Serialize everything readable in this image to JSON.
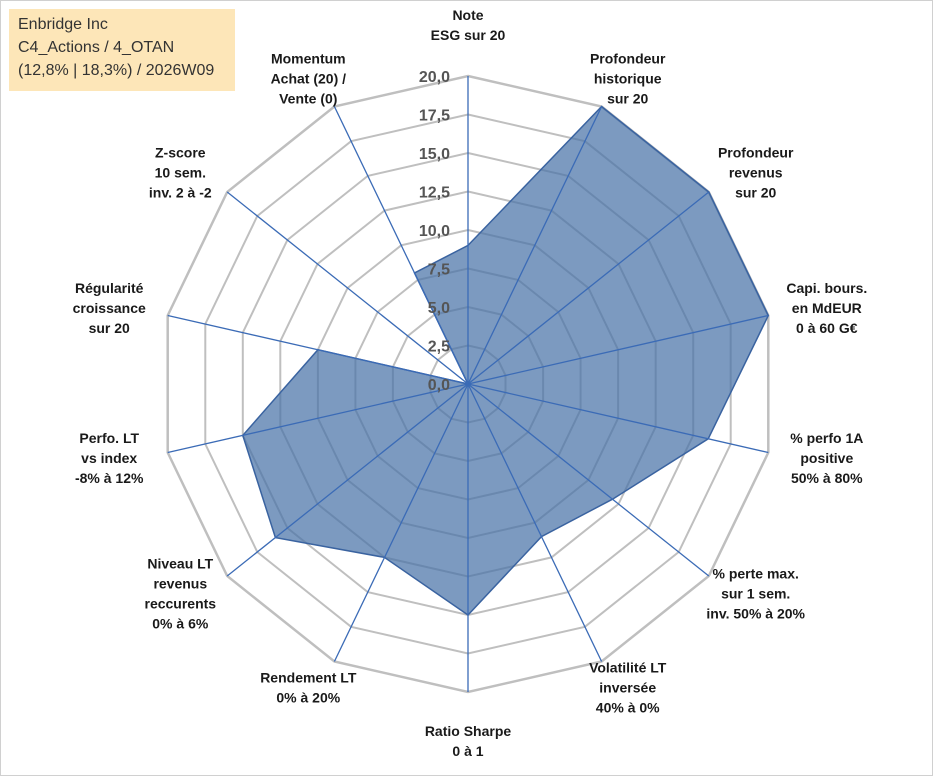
{
  "info": {
    "line1": "Enbridge Inc",
    "line2": "C4_Actions / 4_OTAN",
    "line3": "(12,8% | 18,3%) / 2026W09"
  },
  "chart_data": {
    "type": "radar",
    "rmax": 20,
    "ticks": [
      "0,0",
      "2,5",
      "5,0",
      "7,5",
      "10,0",
      "12,5",
      "15,0",
      "17,5",
      "20,0"
    ],
    "axes": [
      [
        "Note",
        "ESG sur 20"
      ],
      [
        "Profondeur",
        "historique",
        "sur 20"
      ],
      [
        "Profondeur",
        "revenus",
        "sur 20"
      ],
      [
        "Capi. bours.",
        "en MdEUR",
        "0 à 60 G€"
      ],
      [
        "% perfo 1A",
        "positive",
        "50% à 80%"
      ],
      [
        "% perte max.",
        "sur 1 sem.",
        "inv. 50% à 20%"
      ],
      [
        "Volatilité LT",
        "inversée",
        "40% à 0%"
      ],
      [
        "Ratio Sharpe",
        "0 à 1"
      ],
      [
        "Rendement LT",
        "0% à 20%"
      ],
      [
        "Niveau LT",
        "revenus",
        "reccurents",
        "0% à 6%"
      ],
      [
        "Perfo. LT",
        "vs index",
        "-8% à 12%"
      ],
      [
        "Régularité",
        "croissance",
        "sur 20"
      ],
      [
        "Z-score",
        "10 sem.",
        "inv. 2 à -2"
      ],
      [
        "Momentum",
        "Achat (20) /",
        "Vente (0)"
      ]
    ],
    "values": [
      9,
      20,
      20,
      20,
      16,
      12,
      11,
      15,
      12.5,
      16,
      15,
      10,
      0,
      8
    ],
    "fill_color": "#4a73a8",
    "stroke_color": "#3a63a0",
    "grid_color": "#bfbfbf",
    "spoke_color": "#3b6bb6"
  }
}
